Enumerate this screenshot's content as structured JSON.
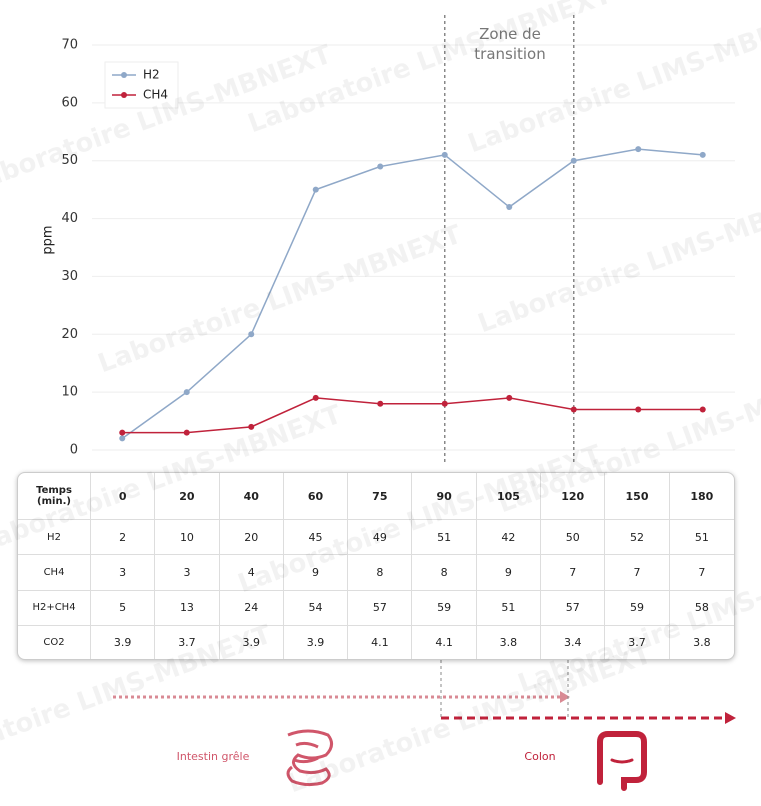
{
  "chart_data": {
    "type": "line",
    "y_label": "ppm",
    "categories": [
      0,
      20,
      40,
      60,
      75,
      90,
      105,
      120,
      150,
      180
    ],
    "series": [
      {
        "name": "H2",
        "color": "#8fa8c8",
        "values": [
          2,
          10,
          20,
          45,
          49,
          51,
          42,
          50,
          52,
          51
        ]
      },
      {
        "name": "CH4",
        "color": "#c0223b",
        "values": [
          3,
          3,
          4,
          9,
          8,
          8,
          9,
          7,
          7,
          7
        ]
      }
    ],
    "ylim": [
      0,
      70
    ],
    "yticks": [
      0,
      10,
      20,
      30,
      40,
      50,
      60,
      70
    ],
    "grid": true,
    "legend": "top-left",
    "transition": {
      "label": "Zone de transition",
      "bounds": [
        90,
        120
      ]
    }
  },
  "table": {
    "header": "Temps (min.)",
    "rows": [
      {
        "label": "H2+CH4",
        "values": [
          5,
          13,
          24,
          54,
          57,
          59,
          51,
          57,
          59,
          58
        ]
      },
      {
        "label": "CO2",
        "values": [
          3.9,
          3.7,
          3.9,
          3.9,
          4.1,
          4.1,
          3.8,
          3.4,
          3.7,
          3.8
        ]
      }
    ]
  },
  "regions": {
    "small_intestine": "Intestin grêle",
    "colon": "Colon"
  },
  "watermark": "Laboratoire LIMS-MBNEXT"
}
